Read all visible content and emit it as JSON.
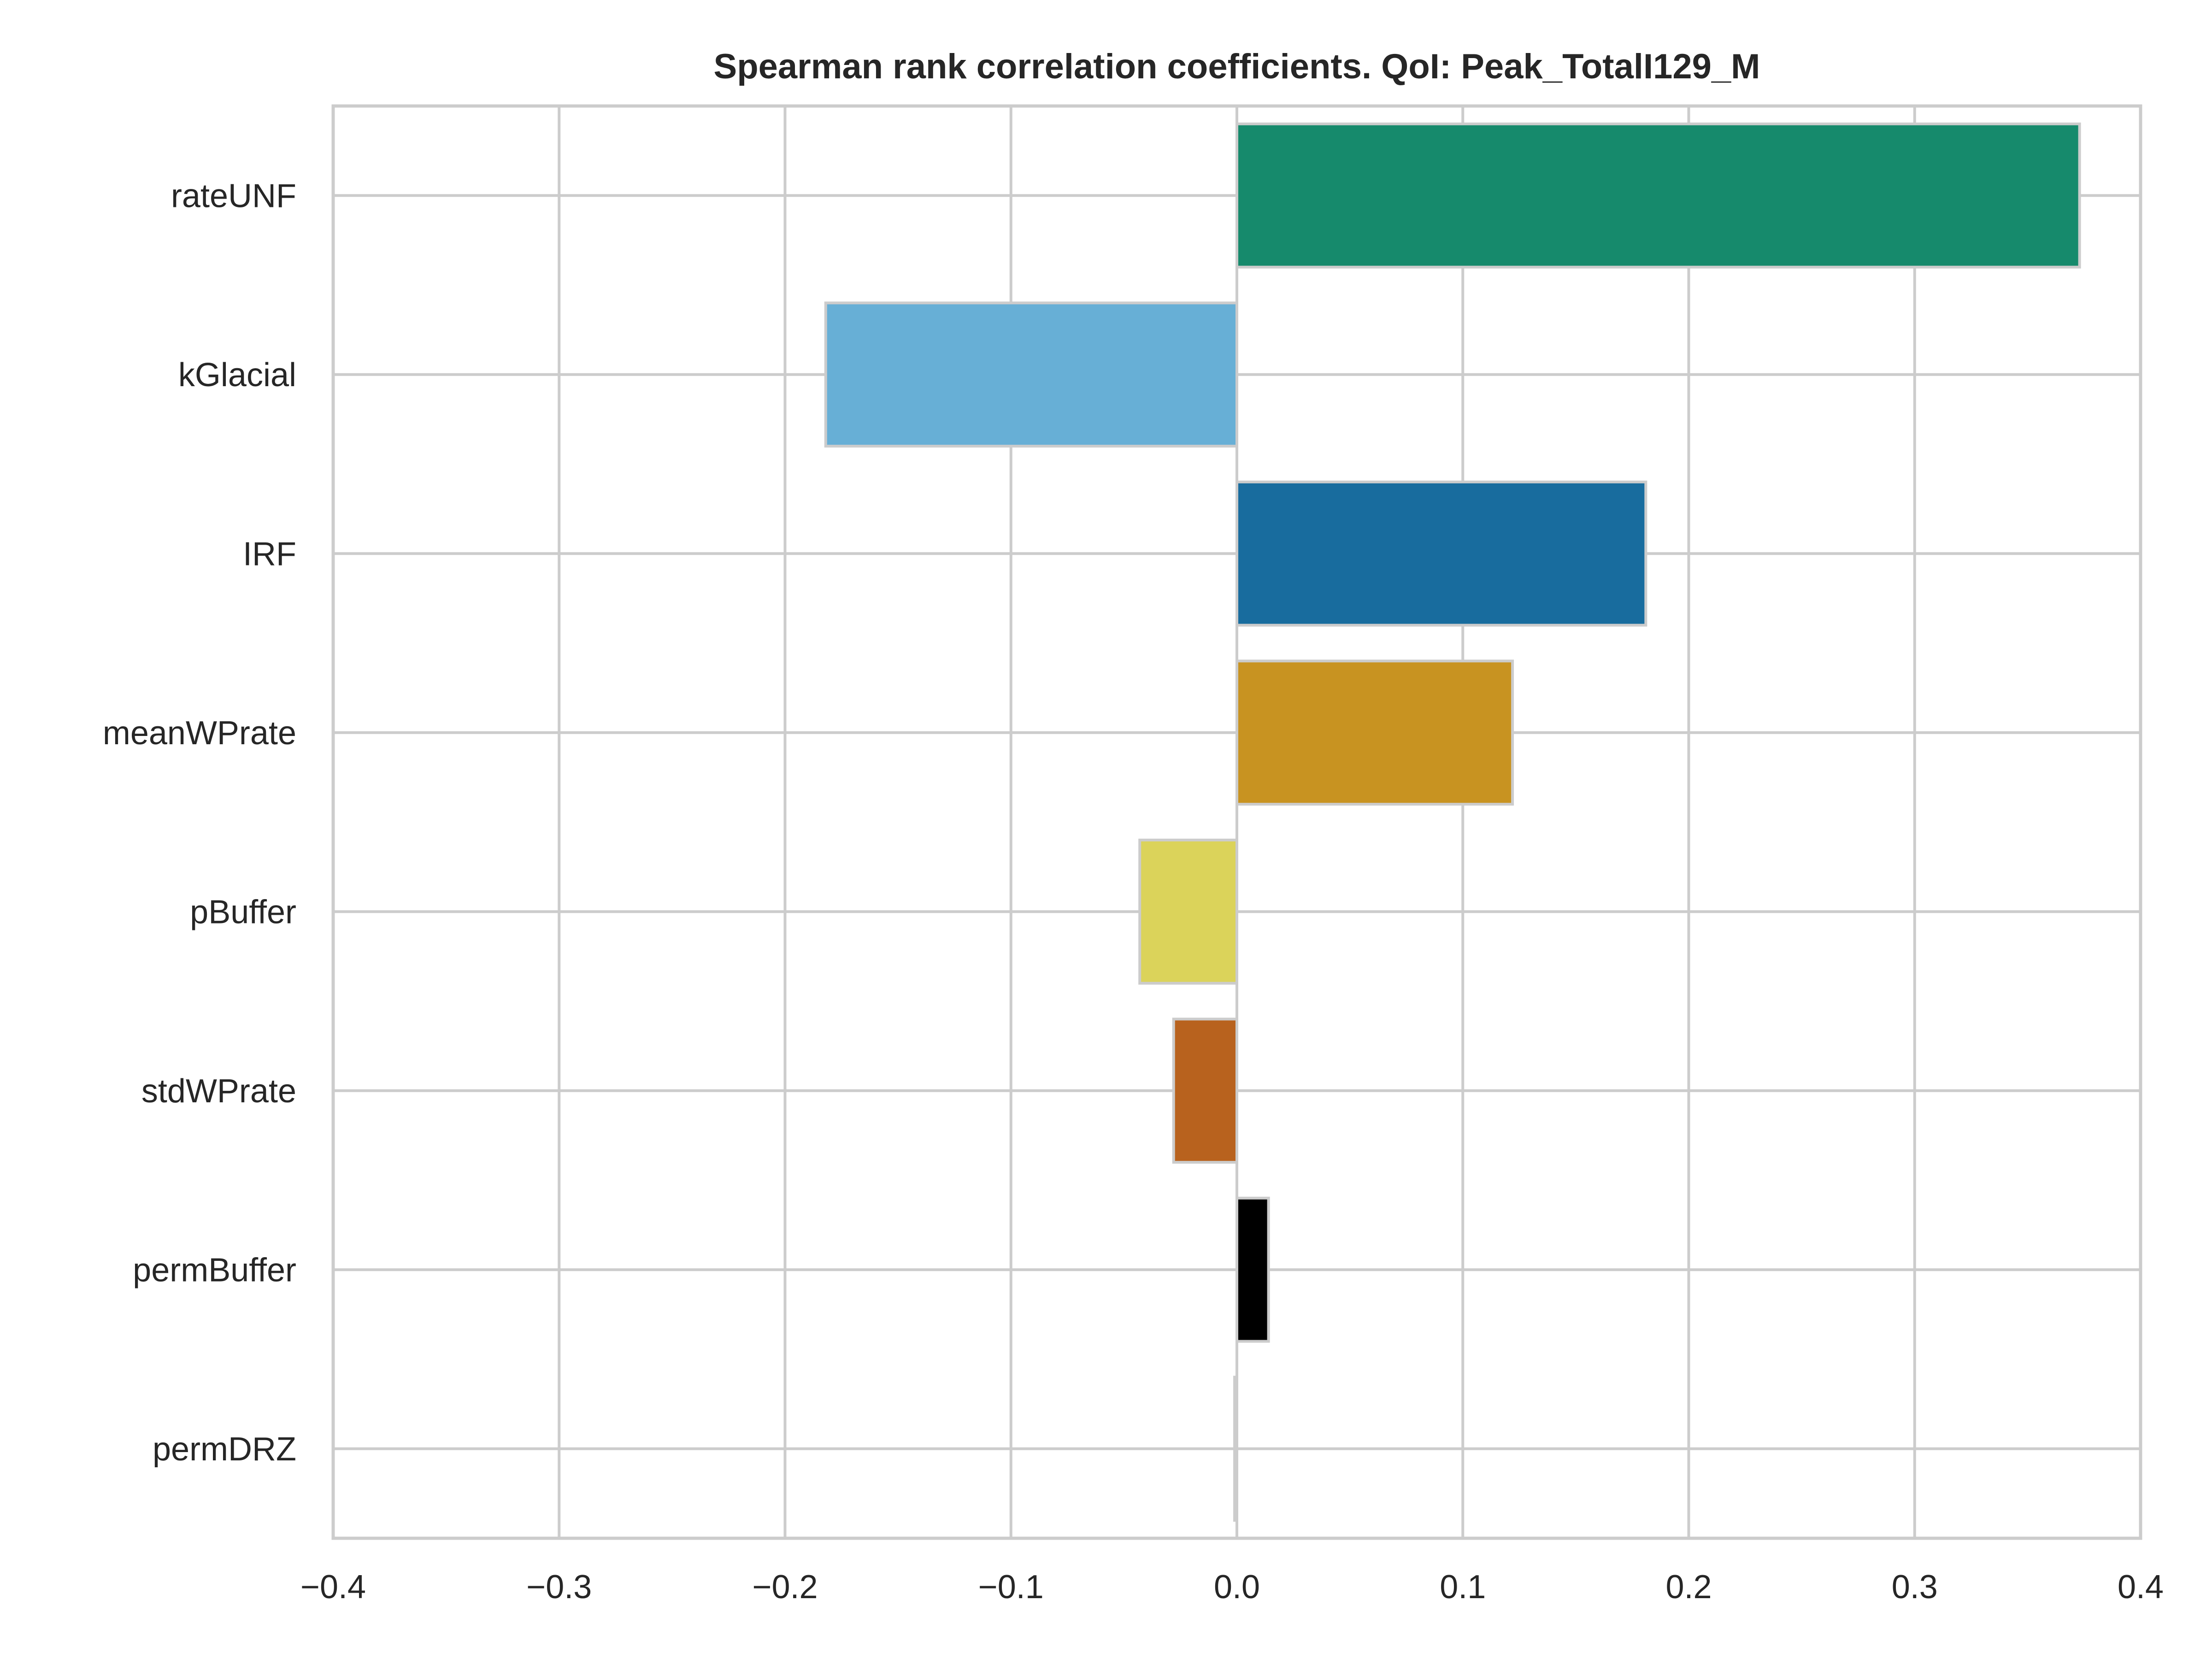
{
  "chart_data": {
    "type": "bar",
    "orientation": "horizontal",
    "title": "Spearman rank correlation coefficients. QoI: Peak_TotalI129_M",
    "xlabel": "",
    "ylabel": "",
    "xlim": [
      -0.4,
      0.4
    ],
    "xticks": [
      -0.4,
      -0.3,
      -0.2,
      -0.1,
      0.0,
      0.1,
      0.2,
      0.3,
      0.4
    ],
    "xtick_labels": [
      "−0.4",
      "−0.3",
      "−0.2",
      "−0.1",
      "0.0",
      "0.1",
      "0.2",
      "0.3",
      "0.4"
    ],
    "categories": [
      "rateUNF",
      "kGlacial",
      "IRF",
      "meanWPrate",
      "pBuffer",
      "stdWPrate",
      "permBuffer",
      "permDRZ"
    ],
    "values": [
      0.373,
      -0.182,
      0.181,
      0.122,
      -0.043,
      -0.028,
      0.014,
      -0.001
    ],
    "colors": [
      "#168a6c",
      "#67afd6",
      "#186c9e",
      "#c89321",
      "#dbd35a",
      "#b8621e",
      "#000000",
      "#cccccc"
    ],
    "grid": true,
    "legend": "none"
  }
}
